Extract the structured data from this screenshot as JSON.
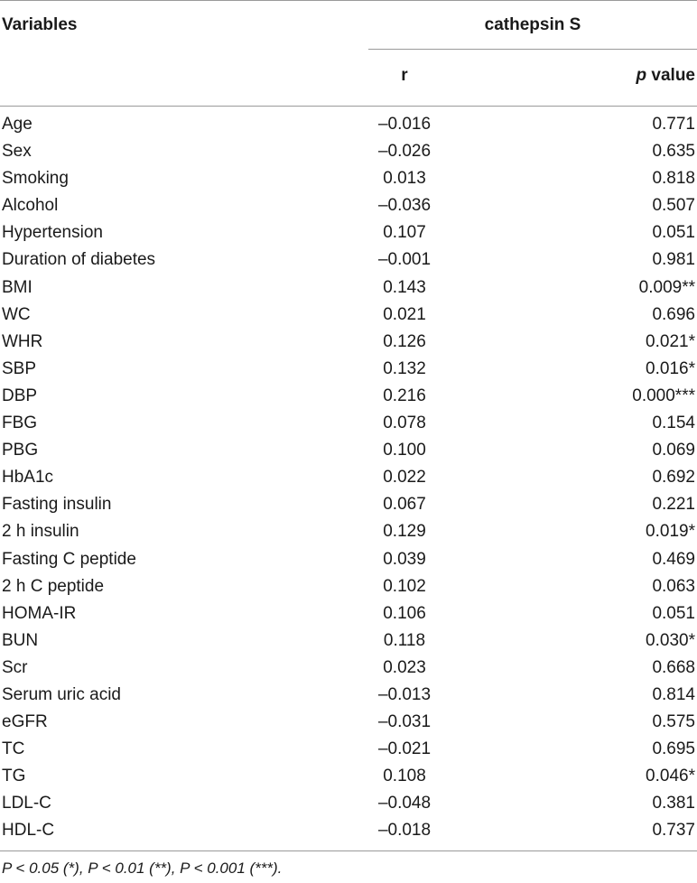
{
  "header": {
    "variables": "Variables",
    "group": "cathepsin S",
    "r": "r",
    "p_italic": "p",
    "p_rest": " value"
  },
  "rows": [
    {
      "variable": "Age",
      "r": "–0.016",
      "p": "0.771"
    },
    {
      "variable": "Sex",
      "r": "–0.026",
      "p": "0.635"
    },
    {
      "variable": "Smoking",
      "r": "0.013",
      "p": "0.818"
    },
    {
      "variable": "Alcohol",
      "r": "–0.036",
      "p": "0.507"
    },
    {
      "variable": "Hypertension",
      "r": "0.107",
      "p": "0.051"
    },
    {
      "variable": "Duration of diabetes",
      "r": "–0.001",
      "p": "0.981"
    },
    {
      "variable": "BMI",
      "r": "0.143",
      "p": "0.009**"
    },
    {
      "variable": "WC",
      "r": "0.021",
      "p": "0.696"
    },
    {
      "variable": "WHR",
      "r": "0.126",
      "p": "0.021*"
    },
    {
      "variable": "SBP",
      "r": "0.132",
      "p": "0.016*"
    },
    {
      "variable": "DBP",
      "r": "0.216",
      "p": "0.000***"
    },
    {
      "variable": "FBG",
      "r": "0.078",
      "p": "0.154"
    },
    {
      "variable": "PBG",
      "r": "0.100",
      "p": "0.069"
    },
    {
      "variable": "HbA1c",
      "r": "0.022",
      "p": "0.692"
    },
    {
      "variable": "Fasting insulin",
      "r": "0.067",
      "p": "0.221"
    },
    {
      "variable": "2 h insulin",
      "r": "0.129",
      "p": "0.019*"
    },
    {
      "variable": "Fasting C peptide",
      "r": "0.039",
      "p": "0.469"
    },
    {
      "variable": "2 h C peptide",
      "r": "0.102",
      "p": "0.063"
    },
    {
      "variable": "HOMA-IR",
      "r": "0.106",
      "p": "0.051"
    },
    {
      "variable": "BUN",
      "r": "0.118",
      "p": "0.030*"
    },
    {
      "variable": "Scr",
      "r": "0.023",
      "p": "0.668"
    },
    {
      "variable": "Serum uric acid",
      "r": "–0.013",
      "p": "0.814"
    },
    {
      "variable": "eGFR",
      "r": "–0.031",
      "p": "0.575"
    },
    {
      "variable": "TC",
      "r": "–0.021",
      "p": "0.695"
    },
    {
      "variable": "TG",
      "r": "0.108",
      "p": "0.046*"
    },
    {
      "variable": "LDL-C",
      "r": "–0.048",
      "p": "0.381"
    },
    {
      "variable": "HDL-C",
      "r": "–0.018",
      "p": "0.737"
    }
  ],
  "footnote": "P < 0.05 (*), P < 0.01 (**), P < 0.001 (***)."
}
